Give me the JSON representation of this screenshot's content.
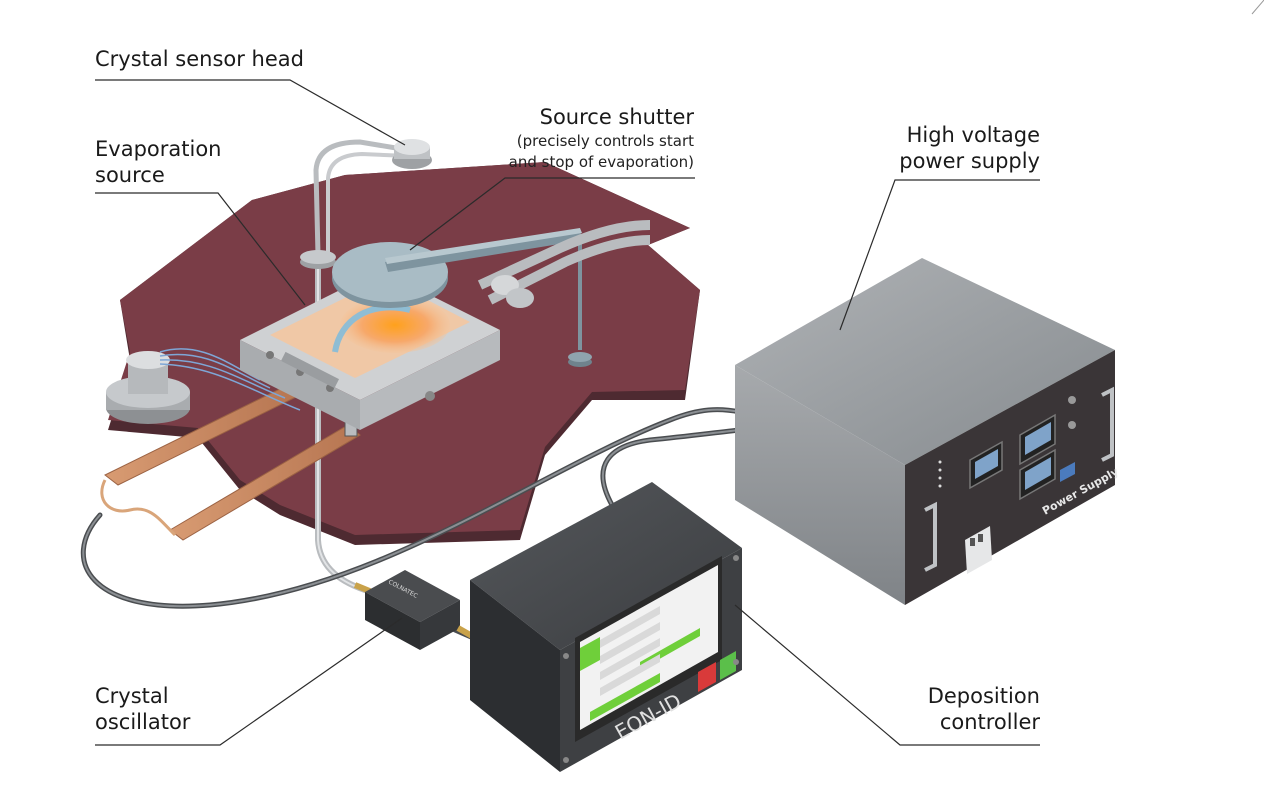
{
  "labels": {
    "crystal_sensor_head": "Crystal sensor head",
    "evaporation_source_1": "Evaporation",
    "evaporation_source_2": "source",
    "source_shutter": "Source shutter",
    "source_shutter_note_1": "(precisely controls start",
    "source_shutter_note_2": "and stop of evaporation)",
    "hv_power_supply_1": "High voltage",
    "hv_power_supply_2": "power supply",
    "crystal_oscillator_1": "Crystal",
    "crystal_oscillator_2": "oscillator",
    "deposition_controller_1": "Deposition",
    "deposition_controller_2": "controller"
  },
  "device_markings": {
    "oscillator_brand": "COLNATEC",
    "controller_brand": "EON-ID",
    "power_supply_name": "Power Supply"
  },
  "colors": {
    "platform": "#7a3d47",
    "platform_edge": "#4e2a31",
    "metal": "#c6c9cc",
    "copper": "#c98b63",
    "shutter": "#9fb3bd",
    "psu_top": "#9c9fa2",
    "psu_front": "#3a3537",
    "controller_body": "#37393c",
    "screen_green": "#6fcf3a",
    "leader_line": "#2b2b2b"
  }
}
